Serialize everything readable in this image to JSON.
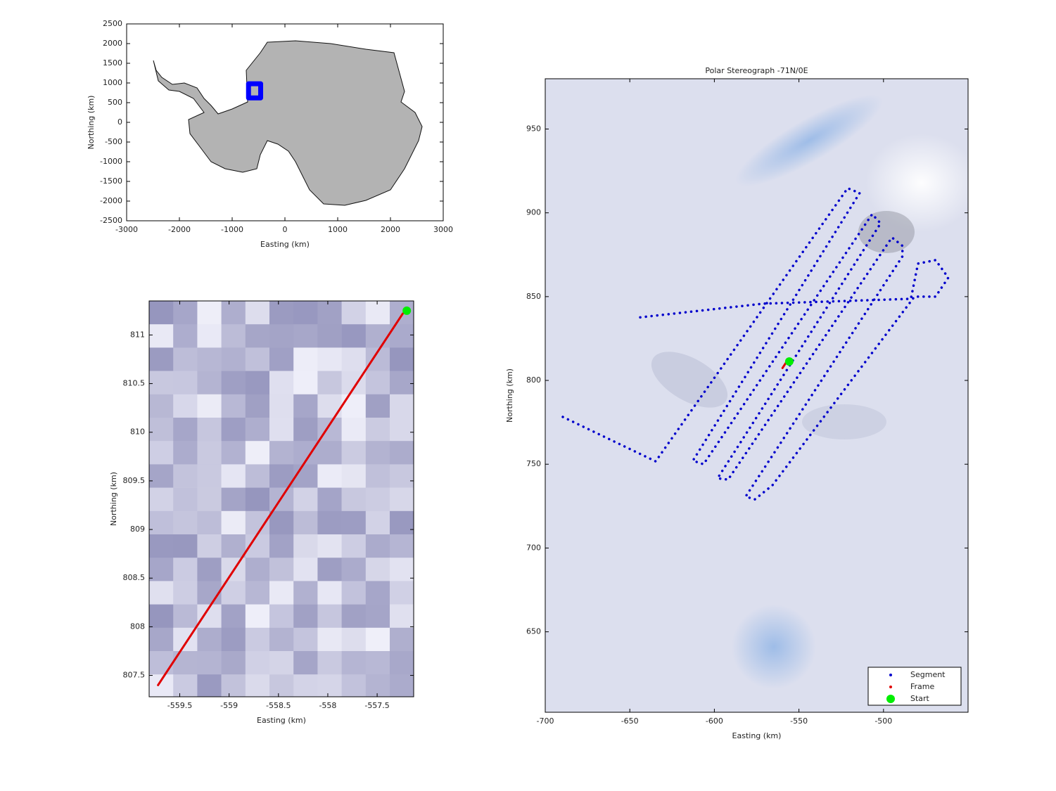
{
  "chart_data": [
    {
      "type": "line",
      "xlabel": "Easting (km)",
      "ylabel": "Northing (km)",
      "xlim": [
        -3000,
        3000
      ],
      "xticks": [
        -3000,
        -2000,
        -1000,
        0,
        1000,
        2000,
        3000
      ],
      "ylim": [
        -2500,
        2500
      ],
      "yticks": [
        -2500,
        -2000,
        -1500,
        -1000,
        -500,
        0,
        500,
        1000,
        1500,
        2000,
        2500
      ],
      "series": [
        {
          "color": "#0000ff",
          "x": [
            -690,
            -460,
            -460,
            -690,
            -690
          ],
          "y": [
            620,
            620,
            980,
            980,
            620
          ]
        }
      ]
    },
    {
      "type": "line",
      "xlabel": "Easting (km)",
      "ylabel": "Northing (km)",
      "xlim": [
        -559.81,
        -557.13
      ],
      "xticks": [
        -559.5,
        -559,
        -558.5,
        -558,
        -557.5
      ],
      "ylim": [
        807.28,
        811.35
      ],
      "yticks": [
        807.5,
        808,
        808.5,
        809,
        809.5,
        810,
        810.5,
        811
      ],
      "series": [
        {
          "color": "#e00000",
          "x": [
            -559.72,
            -557.24
          ],
          "y": [
            807.4,
            811.22
          ]
        },
        {
          "color": "#00ee00",
          "marker": "dot",
          "x": [
            -557.2
          ],
          "y": [
            811.25
          ]
        }
      ]
    },
    {
      "type": "line",
      "title": "Polar Stereograph -71N/0E",
      "xlabel": "Easting (km)",
      "ylabel": "Northing (km)",
      "xlim": [
        -700,
        -450
      ],
      "xticks": [
        -700,
        -650,
        -600,
        -550,
        -500
      ],
      "ylim": [
        602,
        980
      ],
      "yticks": [
        650,
        700,
        750,
        800,
        850,
        900,
        950
      ],
      "legend": "lower right",
      "series": [
        {
          "name": "Segment",
          "color": "#0000cc",
          "line_style": "dotted",
          "x": [
            -689.6,
            -634.7,
            -521.2,
            -514.1,
            -612.7,
            -606.4,
            -506.7,
            -501.7,
            -598.1,
            -591.9,
            -495.0,
            -488.8,
            -488.8,
            -581.5,
            -576.1,
            -565.7,
            -481.7,
            -469.2,
            -461.7,
            -469.2,
            -479.6,
            -483.8,
            -571.1,
            -645.9
          ],
          "y": [
            778.2,
            751.7,
            914.7,
            911.8,
            752.1,
            750.0,
            899.2,
            893.7,
            741.6,
            740.8,
            885.3,
            880.3,
            874.0,
            730.7,
            729.0,
            737.4,
            850.0,
            850.0,
            861.3,
            871.8,
            869.7,
            848.7,
            845.8,
            837.4
          ]
        },
        {
          "name": "Frame",
          "color": "#e00000",
          "x": [
            -559.72,
            -557.24
          ],
          "y": [
            807.4,
            811.22
          ]
        },
        {
          "name": "Start",
          "color": "#00ee00",
          "marker": "dot",
          "x": [
            -555.7
          ],
          "y": [
            811.3
          ]
        }
      ]
    }
  ]
}
